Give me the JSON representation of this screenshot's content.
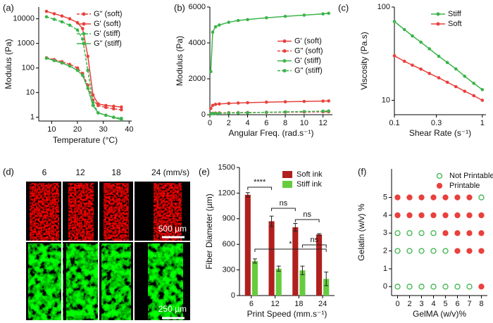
{
  "chart_data": [
    {
      "type": "line",
      "panel_label": "(a)",
      "xlabel": "Temperature (°C)",
      "ylabel": "Modulus (Pa)",
      "ylog": true,
      "xlim": [
        5,
        41
      ],
      "xticks": [
        10,
        20,
        30,
        40
      ],
      "ylim": [
        0.7,
        30000
      ],
      "yticks": [
        1,
        10,
        100,
        1000,
        10000
      ],
      "legend": "upper right",
      "x": [
        8,
        11,
        14,
        17,
        20,
        22,
        24,
        26,
        28,
        31,
        34,
        37
      ],
      "series": [
        {
          "name": "G\" (soft)",
          "color": "#e8413c",
          "dash": true,
          "values": [
            260,
            220,
            180,
            140,
            100,
            60,
            20,
            5,
            3,
            2.5,
            2.2,
            2
          ]
        },
        {
          "name": "G' (soft)",
          "color": "#e8413c",
          "dash": false,
          "values": [
            20000,
            16000,
            13000,
            10000,
            7000,
            4000,
            300,
            8,
            3.5,
            3,
            2.8,
            2.6
          ]
        },
        {
          "name": "G' (stiff)",
          "color": "#3cb44b",
          "dash": true,
          "values": [
            12000,
            9500,
            7500,
            5500,
            3500,
            1500,
            80,
            4,
            1.5,
            1.2,
            1,
            0.9
          ]
        },
        {
          "name": "G\" (stiff)",
          "color": "#3cb44b",
          "dash": false,
          "values": [
            250,
            200,
            160,
            120,
            80,
            50,
            15,
            3,
            1.5,
            1.2,
            1,
            0.8
          ]
        }
      ]
    },
    {
      "type": "line",
      "panel_label": "(b)",
      "xlabel": "Angular Freq. (rad.s⁻¹)",
      "ylabel": "Modulus (Pa)",
      "ylog": false,
      "xlim": [
        0,
        13
      ],
      "xticks": [
        0,
        2,
        4,
        6,
        8,
        10,
        12
      ],
      "ylim": [
        0,
        6000
      ],
      "yticks": [
        0,
        2000,
        4000,
        6000
      ],
      "legend": "center right",
      "x": [
        0.1,
        0.3,
        0.6,
        1,
        2,
        3,
        4,
        6,
        8,
        10,
        12,
        12.6
      ],
      "series": [
        {
          "name": "G' (soft)",
          "color": "#e8413c",
          "dash": false,
          "values": [
            350,
            520,
            580,
            600,
            630,
            650,
            670,
            700,
            720,
            740,
            760,
            770
          ]
        },
        {
          "name": "G\" (soft)",
          "color": "#e8413c",
          "dash": true,
          "values": [
            60,
            80,
            90,
            100,
            110,
            115,
            120,
            130,
            140,
            150,
            160,
            165
          ]
        },
        {
          "name": "G' (stiff)",
          "color": "#3cb44b",
          "dash": false,
          "values": [
            2400,
            4600,
            4900,
            5000,
            5150,
            5250,
            5300,
            5400,
            5480,
            5550,
            5620,
            5650
          ]
        },
        {
          "name": "G\" (stiff)",
          "color": "#3cb44b",
          "dash": true,
          "values": [
            40,
            60,
            70,
            80,
            95,
            105,
            115,
            135,
            155,
            175,
            195,
            205
          ]
        }
      ]
    },
    {
      "type": "line",
      "panel_label": "(c)",
      "xlabel": "Shear Rate (s⁻¹)",
      "ylabel": "Viscosity (Pa.s)",
      "xlog": true,
      "ylog": true,
      "xlim": [
        0.1,
        1.1
      ],
      "xticks": [
        0.1,
        0.3,
        1
      ],
      "ylim": [
        7,
        100
      ],
      "yticks": [
        10,
        100
      ],
      "legend": "upper right",
      "x": [
        0.1,
        0.13,
        0.16,
        0.2,
        0.25,
        0.32,
        0.4,
        0.5,
        0.63,
        0.8,
        1
      ],
      "series": [
        {
          "name": "Stiff",
          "color": "#3cb44b",
          "dash": false,
          "values": [
            70,
            57.3,
            49,
            42,
            35.6,
            29.6,
            25.4,
            21.7,
            18.1,
            15.2,
            13
          ]
        },
        {
          "name": "Soft",
          "color": "#e8413c",
          "dash": false,
          "values": [
            30,
            26.2,
            23.8,
            21.6,
            19.4,
            17.4,
            15.6,
            14,
            12.5,
            11.2,
            10
          ]
        }
      ]
    },
    {
      "type": "image",
      "panel_label": "(d)",
      "column_labels": [
        "6",
        "12",
        "18",
        "24 (mm/s)"
      ],
      "scale_bars": [
        "500 µm",
        "250 µm"
      ]
    },
    {
      "type": "bar",
      "panel_label": "(e)",
      "xlabel": "Print Speed (mm.s⁻¹)",
      "ylabel": "Fiber Diameter (µm)",
      "categories": [
        "6",
        "12",
        "18",
        "24"
      ],
      "ylim": [
        0,
        1500
      ],
      "yticks": [
        0,
        300,
        600,
        900,
        1200,
        1500
      ],
      "legend": "upper right",
      "series": [
        {
          "name": "Soft ink",
          "color": "#b0201e",
          "values": [
            1180,
            870,
            800,
            715
          ],
          "errors": [
            25,
            60,
            45,
            10
          ]
        },
        {
          "name": "Stiff ink",
          "color": "#66cc3e",
          "values": [
            405,
            315,
            295,
            195
          ],
          "errors": [
            25,
            30,
            50,
            80
          ]
        }
      ],
      "annotations": [
        "****",
        "ns",
        "ns",
        "*",
        "ns"
      ]
    },
    {
      "type": "scatter",
      "panel_label": "(f)",
      "xlabel": "GelMA (w/v)%",
      "ylabel": "Gelatin (w/v) %",
      "categories": [
        0,
        2,
        3,
        4,
        5,
        6,
        7,
        8
      ],
      "ylim": [
        -0.5,
        6.6
      ],
      "yticks": [
        0,
        1,
        2,
        3,
        4,
        5
      ],
      "legend": "upper right",
      "series": [
        {
          "name": "Not Printable",
          "color": "#3cb44b",
          "marker": "open",
          "x": [
            8,
            0,
            2,
            3,
            4,
            0,
            2,
            3,
            4,
            5,
            0,
            2,
            3,
            4,
            5,
            6,
            7
          ],
          "values": [
            5,
            3,
            3,
            3,
            3,
            2,
            2,
            2,
            2,
            2,
            0,
            0,
            0,
            0,
            0,
            0,
            0
          ]
        },
        {
          "name": "Printable",
          "color": "#e8413c",
          "marker": "filled",
          "x": [
            0,
            2,
            3,
            4,
            5,
            6,
            7,
            0,
            2,
            3,
            4,
            5,
            6,
            7,
            8,
            5,
            6,
            7,
            8,
            6,
            7,
            8,
            8
          ],
          "values": [
            5,
            5,
            5,
            5,
            5,
            5,
            5,
            4,
            4,
            4,
            4,
            4,
            4,
            4,
            4,
            3,
            3,
            3,
            3,
            2,
            2,
            2,
            0
          ]
        }
      ]
    }
  ]
}
